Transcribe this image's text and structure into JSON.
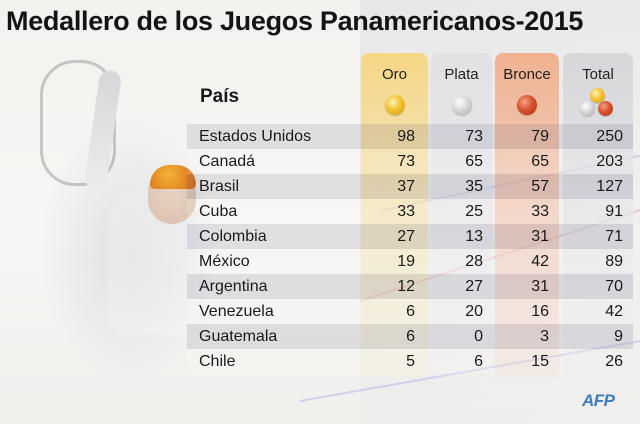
{
  "title": "Medallero de los Juegos Panamericanos-2015",
  "chart_data": {
    "type": "table",
    "row_header": "País",
    "columns": [
      {
        "key": "oro",
        "label": "Oro",
        "medal": "gold",
        "color": "#f3c233"
      },
      {
        "key": "plata",
        "label": "Plata",
        "medal": "silver",
        "color": "#d9d9d9"
      },
      {
        "key": "bronce",
        "label": "Bronce",
        "medal": "bronze",
        "color": "#d8512d"
      },
      {
        "key": "total",
        "label": "Total",
        "medal": "all",
        "color": "#d6d6da"
      }
    ],
    "rows": [
      {
        "country": "Estados Unidos",
        "oro": 98,
        "plata": 73,
        "bronce": 79,
        "total": 250
      },
      {
        "country": "Canadá",
        "oro": 73,
        "plata": 65,
        "bronce": 65,
        "total": 203
      },
      {
        "country": "Brasil",
        "oro": 37,
        "plata": 35,
        "bronce": 57,
        "total": 127
      },
      {
        "country": "Cuba",
        "oro": 33,
        "plata": 25,
        "bronce": 33,
        "total": 91
      },
      {
        "country": "Colombia",
        "oro": 27,
        "plata": 13,
        "bronce": 31,
        "total": 71
      },
      {
        "country": "México",
        "oro": 19,
        "plata": 28,
        "bronce": 42,
        "total": 89
      },
      {
        "country": "Argentina",
        "oro": 12,
        "plata": 27,
        "bronce": 31,
        "total": 70
      },
      {
        "country": "Venezuela",
        "oro": 6,
        "plata": 20,
        "bronce": 16,
        "total": 42
      },
      {
        "country": "Guatemala",
        "oro": 6,
        "plata": 0,
        "bronce": 3,
        "total": 9
      },
      {
        "country": "Chile",
        "oro": 5,
        "plata": 6,
        "bronce": 15,
        "total": 26
      }
    ]
  },
  "credit": "AFP"
}
